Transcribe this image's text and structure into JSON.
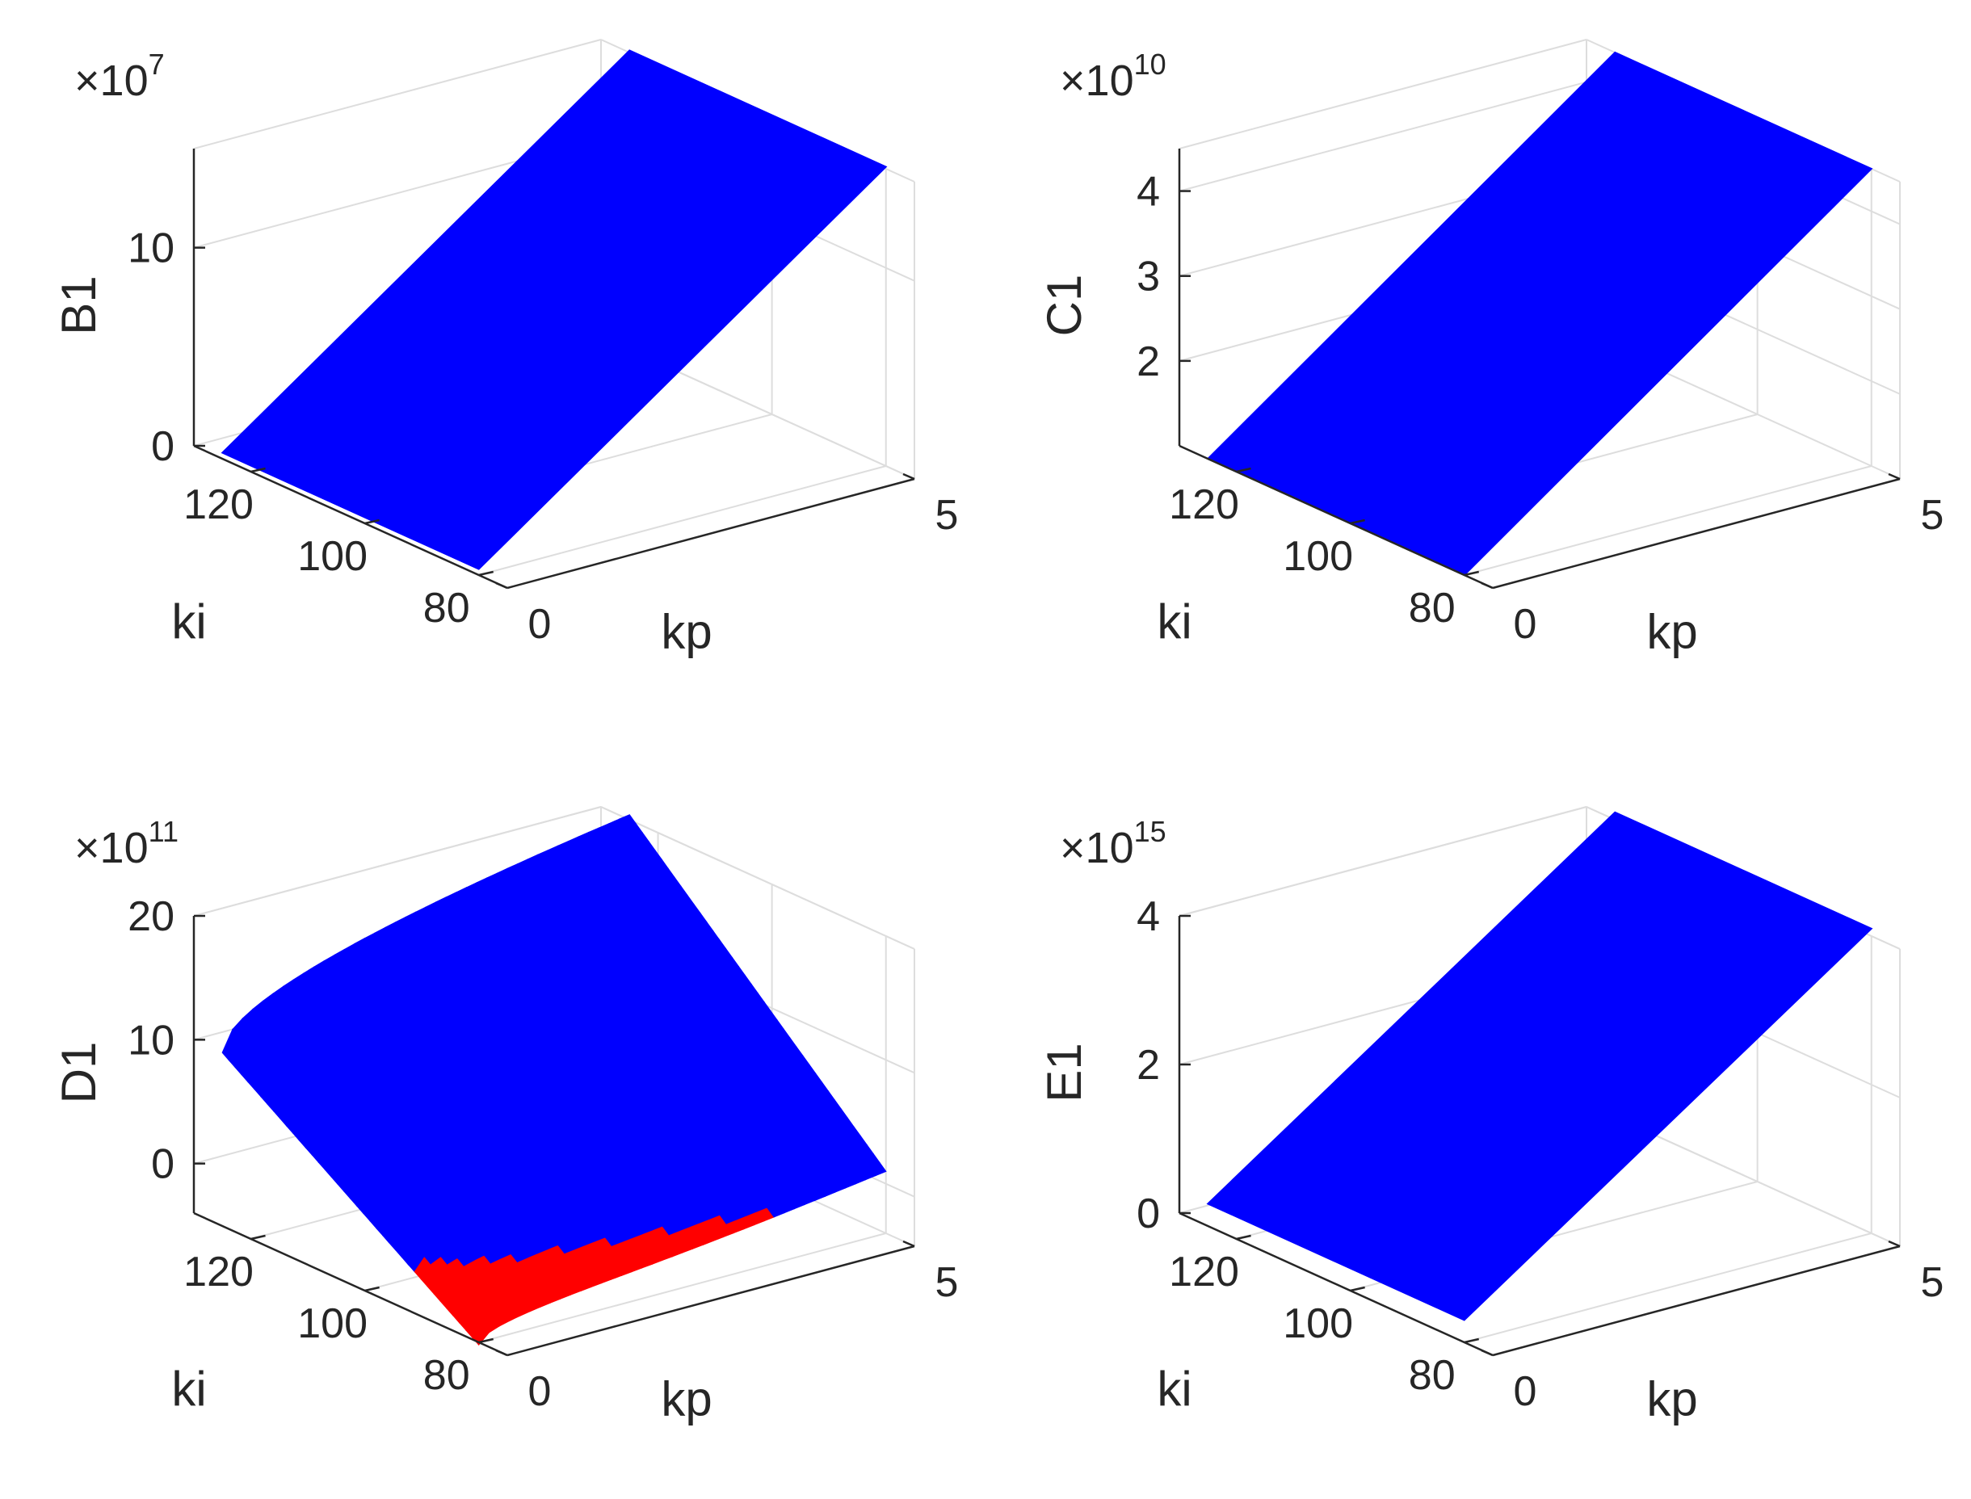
{
  "figure": {
    "panels": [
      {
        "id": "B1",
        "zlabel": "B1",
        "xlabel": "kp",
        "ylabel": "ki",
        "exponent": "7",
        "xticks": [
          "0",
          "5"
        ],
        "yticks": [
          "80",
          "100",
          "120"
        ],
        "zticks": [
          "0",
          "10"
        ]
      },
      {
        "id": "C1",
        "zlabel": "C1",
        "xlabel": "kp",
        "ylabel": "ki",
        "exponent": "10",
        "xticks": [
          "0",
          "5"
        ],
        "yticks": [
          "80",
          "100",
          "120"
        ],
        "zticks": [
          "2",
          "3",
          "4"
        ]
      },
      {
        "id": "D1",
        "zlabel": "D1",
        "xlabel": "kp",
        "ylabel": "ki",
        "exponent": "11",
        "xticks": [
          "0",
          "5"
        ],
        "yticks": [
          "80",
          "100",
          "120"
        ],
        "zticks": [
          "0",
          "10",
          "20"
        ]
      },
      {
        "id": "E1",
        "zlabel": "E1",
        "xlabel": "kp",
        "ylabel": "ki",
        "exponent": "15",
        "xticks": [
          "0",
          "5"
        ],
        "yticks": [
          "80",
          "100",
          "120"
        ],
        "zticks": [
          "0",
          "2",
          "4"
        ]
      }
    ]
  },
  "chart_data": [
    {
      "type": "surface",
      "zlabel": "B1",
      "xlabel": "kp",
      "ylabel": "ki",
      "z_exponent": 7,
      "xlim": [
        0,
        5
      ],
      "ylim": [
        75,
        130
      ],
      "zlim": [
        0,
        15
      ],
      "xticks": [
        0,
        5
      ],
      "yticks": [
        80,
        100,
        120
      ],
      "zticks": [
        0,
        10
      ],
      "corners": [
        {
          "x": 0,
          "y": 80,
          "z": 0.3
        },
        {
          "x": 5,
          "y": 80,
          "z": 15.1
        },
        {
          "x": 5,
          "y": 125,
          "z": 15.1
        },
        {
          "x": 0,
          "y": 125,
          "z": 0.3
        }
      ],
      "colors": {
        "surface": "#0000ff"
      },
      "grid": true
    },
    {
      "type": "surface",
      "zlabel": "C1",
      "xlabel": "kp",
      "ylabel": "ki",
      "z_exponent": 10,
      "xlim": [
        0,
        5
      ],
      "ylim": [
        75,
        130
      ],
      "zlim": [
        1,
        4.5
      ],
      "xticks": [
        0,
        5
      ],
      "yticks": [
        80,
        100,
        120
      ],
      "zticks": [
        2,
        3,
        4
      ],
      "corners": [
        {
          "x": 0,
          "y": 80,
          "z": 1.0
        },
        {
          "x": 5,
          "y": 80,
          "z": 4.5
        },
        {
          "x": 5,
          "y": 125,
          "z": 4.5
        },
        {
          "x": 0,
          "y": 125,
          "z": 1.0
        }
      ],
      "colors": {
        "surface": "#0000ff"
      },
      "grid": true
    },
    {
      "type": "surface",
      "zlabel": "D1",
      "xlabel": "kp",
      "ylabel": "ki",
      "z_exponent": 11,
      "xlim": [
        0,
        5
      ],
      "ylim": [
        75,
        130
      ],
      "zlim": [
        -4,
        20
      ],
      "xticks": [
        0,
        5
      ],
      "yticks": [
        80,
        100,
        120
      ],
      "zticks": [
        0,
        10,
        20
      ],
      "corners": [
        {
          "x": 0,
          "y": 80,
          "z": -4.2
        },
        {
          "x": 5,
          "y": 80,
          "z": 1.0
        },
        {
          "x": 5,
          "y": 125,
          "z": 20.4
        },
        {
          "x": 0,
          "y": 125,
          "z": 10.0
        }
      ],
      "colors": {
        "surface_positive": "#0000ff",
        "surface_negative": "#ff0000"
      },
      "grid": true
    },
    {
      "type": "surface",
      "zlabel": "E1",
      "xlabel": "kp",
      "ylabel": "ki",
      "z_exponent": 15,
      "xlim": [
        0,
        5
      ],
      "ylim": [
        75,
        130
      ],
      "zlim": [
        0,
        4
      ],
      "xticks": [
        0,
        5
      ],
      "yticks": [
        80,
        100,
        120
      ],
      "zticks": [
        0,
        2,
        4
      ],
      "corners": [
        {
          "x": 0,
          "y": 80,
          "z": 0.3
        },
        {
          "x": 5,
          "y": 80,
          "z": 4.1
        },
        {
          "x": 5,
          "y": 125,
          "z": 4.1
        },
        {
          "x": 0,
          "y": 125,
          "z": 0.3
        }
      ],
      "colors": {
        "surface": "#0000ff"
      },
      "grid": true
    }
  ]
}
